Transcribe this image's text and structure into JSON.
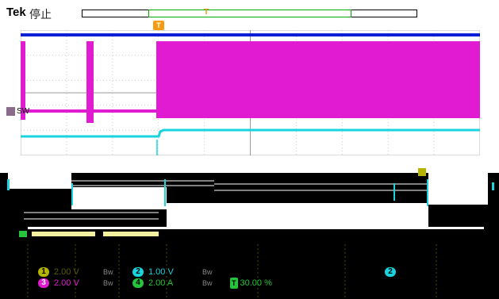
{
  "header": {
    "brand": "Tek",
    "status": "停止",
    "trigger_marker": "T"
  },
  "waveform": {
    "channel3_label": "SW",
    "channel_marker_2": "2"
  },
  "readouts": {
    "ch1": {
      "badge": "1",
      "scale": "2.00 V"
    },
    "ch2": {
      "badge": "2",
      "scale": "1.00 V"
    },
    "ch3": {
      "badge": "3",
      "scale": "2.00 V"
    },
    "ch4": {
      "badge": "4",
      "scale": "2.00 A"
    },
    "bw_symbol": "Bw",
    "trigger_badge": "T",
    "trigger_level": "30.00 %",
    "ch2_marker_badge": "2"
  },
  "colors": {
    "ch1": "#b5b500",
    "ch2": "#19d3df",
    "ch3": "#e01bd2",
    "ch4": "#25c43a",
    "ch_blue": "#0a1fd6",
    "trigger": "#f39c12"
  }
}
